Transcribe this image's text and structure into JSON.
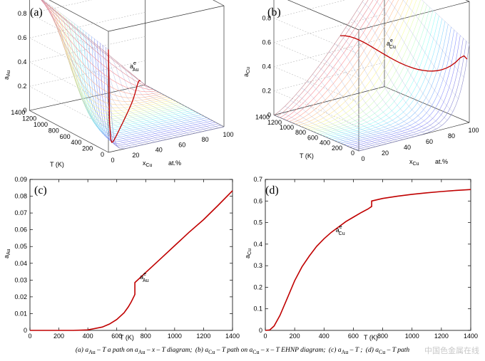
{
  "caption": {
    "a": "(a)  a",
    "a_sub": "Au",
    "a_rest": "– T   a path on  a",
    "a_rest_sub": "Au",
    "a_tail": "– x – T  diagram;",
    "b": "(b)  a",
    "b_sub": "Cu",
    "b_rest": "– T path on  a",
    "b_rest_sub": "Cu",
    "b_tail": "– x – T  EHNP diagram;",
    "c": "(c)  a",
    "c_sub": "Au",
    "c_tail": "– T ;",
    "d": "(d)  a",
    "d_sub": "Cu",
    "d_tail": "– T  path",
    "watermark": "中国色金属在线"
  },
  "chart_data": [
    {
      "id": "a",
      "panel_label": "(a)",
      "type": "surface3d",
      "zlabel": "a",
      "zlabel_sub": "Au",
      "xlabel": "x",
      "xlabel_sub": "Cu",
      "xlabel_unit": "at.%",
      "ylabel": "T  (K)",
      "annotation": "a",
      "annotation_sup": "e",
      "annotation_sub": "Au",
      "z_ticks": [
        "0",
        "0.2",
        "0.4",
        "0.6",
        "0.8",
        "1"
      ],
      "x_ticks": [
        "0",
        "20",
        "40",
        "60",
        "80",
        "100"
      ],
      "t_ticks": [
        "0",
        "200",
        "400",
        "600",
        "800",
        "1000",
        "1200",
        "1400"
      ],
      "xlim": [
        0,
        100
      ],
      "ylim": [
        0,
        1400
      ],
      "zlim": [
        0,
        1
      ]
    },
    {
      "id": "b",
      "panel_label": "(b)",
      "type": "surface3d",
      "zlabel": "a",
      "zlabel_sub": "Cu",
      "xlabel": "x",
      "xlabel_sub": "Cu",
      "xlabel_unit": "at.%",
      "ylabel": "T  (K)",
      "annotation": "a",
      "annotation_sup": "e",
      "annotation_sub": "Cu",
      "z_ticks": [
        "0",
        "0.2",
        "0.4",
        "0.6",
        "0.8",
        "1"
      ],
      "x_ticks": [
        "0",
        "20",
        "40",
        "60",
        "80",
        "100"
      ],
      "t_ticks": [
        "0",
        "200",
        "400",
        "600",
        "800",
        "1000",
        "1200",
        "1400"
      ],
      "xlim": [
        0,
        100
      ],
      "ylim": [
        0,
        1400
      ],
      "zlim": [
        0,
        1
      ]
    },
    {
      "id": "c",
      "panel_label": "(c)",
      "type": "line",
      "xlabel": "T  (K)",
      "ylabel": "a",
      "ylabel_sub": "Au",
      "annotation": "a",
      "annotation_sup": "e",
      "annotation_sub": "Au",
      "xlim": [
        0,
        1400
      ],
      "ylim": [
        0,
        0.09
      ],
      "x_ticks": [
        0,
        200,
        400,
        600,
        800,
        1000,
        1200,
        1400
      ],
      "y_ticks": [
        0,
        0.01,
        0.02,
        0.03,
        0.04,
        0.05,
        0.06,
        0.07,
        0.08,
        0.09
      ],
      "y_tick_labels": [
        "0",
        "0.01",
        "0.02",
        "0.03",
        "0.04",
        "0.05",
        "0.06",
        "0.07",
        "0.08",
        "0.09"
      ],
      "series_color": "#c00000",
      "x": [
        0,
        300,
        400,
        500,
        550,
        600,
        650,
        680,
        700,
        720,
        725,
        725,
        800,
        900,
        1000,
        1100,
        1200,
        1300,
        1400
      ],
      "y": [
        0,
        0,
        0.0003,
        0.002,
        0.0038,
        0.0065,
        0.0105,
        0.014,
        0.017,
        0.0205,
        0.0215,
        0.0285,
        0.0345,
        0.0425,
        0.0505,
        0.0585,
        0.066,
        0.0745,
        0.0833
      ]
    },
    {
      "id": "d",
      "panel_label": "(d)",
      "type": "line",
      "xlabel": "T  (K)",
      "ylabel": "a",
      "ylabel_sub": "Cu",
      "annotation": "a",
      "annotation_sup": "e",
      "annotation_sub": "Cu",
      "xlim": [
        0,
        1400
      ],
      "ylim": [
        0,
        0.7
      ],
      "x_ticks": [
        0,
        200,
        400,
        600,
        800,
        1000,
        1200,
        1400
      ],
      "y_ticks": [
        0,
        0.1,
        0.2,
        0.3,
        0.4,
        0.5,
        0.6,
        0.7
      ],
      "y_tick_labels": [
        "0",
        "0.1",
        "0.2",
        "0.3",
        "0.4",
        "0.5",
        "0.6",
        "0.7"
      ],
      "series_color": "#c00000",
      "x": [
        0,
        30,
        60,
        100,
        150,
        200,
        250,
        300,
        350,
        400,
        450,
        500,
        550,
        600,
        650,
        700,
        725,
        725,
        800,
        900,
        1000,
        1100,
        1200,
        1300,
        1400
      ],
      "y": [
        0,
        0.002,
        0.02,
        0.07,
        0.15,
        0.23,
        0.295,
        0.345,
        0.39,
        0.425,
        0.455,
        0.48,
        0.505,
        0.525,
        0.545,
        0.563,
        0.575,
        0.6,
        0.612,
        0.622,
        0.631,
        0.638,
        0.644,
        0.649,
        0.653
      ]
    }
  ]
}
